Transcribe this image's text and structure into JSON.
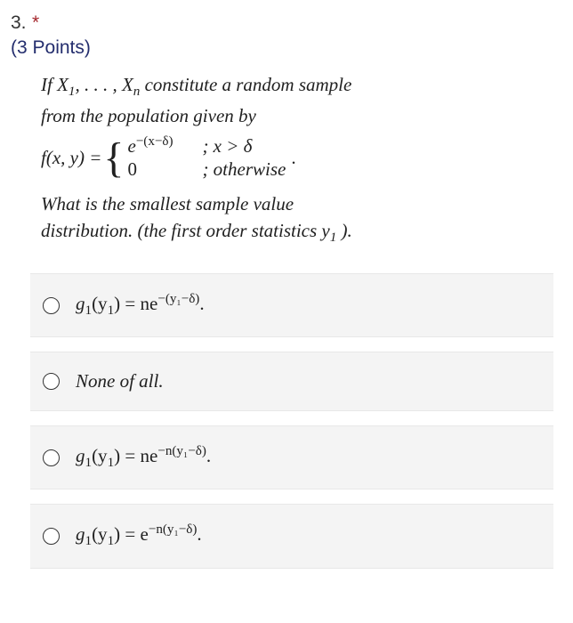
{
  "header": {
    "number": "3.",
    "required_mark": "*",
    "points": "(3 Points)"
  },
  "question": {
    "line1_a": "If X",
    "line1_b": ", . . . , X",
    "line1_c": " constitute a random sample",
    "sub1": "1",
    "subn": "n",
    "line2": "from the population given by",
    "fxy": "f(x, y) = ",
    "case1_val_a": "e",
    "case1_exp": "−(x−δ)",
    "case1_cond": "; x > δ",
    "case2_val": "0",
    "case2_cond": "; otherwise",
    "trailing_dot": ".",
    "line4": "What is the smallest sample value",
    "line5_a": "distribution.  (the first order statistics y",
    "line5_sub": "1",
    "line5_b": " )."
  },
  "options": {
    "a": {
      "pre": "g",
      "sub": "1",
      "mid": "(y",
      "sub2": "1",
      "post": ") = ne",
      "exp": "−(y₁−δ)",
      "tail": "."
    },
    "b": {
      "text": "None of all."
    },
    "c": {
      "pre": "g",
      "sub": "1",
      "mid": "(y",
      "sub2": "1",
      "post": ") = ne",
      "exp": "−n(y₁−δ)",
      "tail": "."
    },
    "d": {
      "pre": "g",
      "sub": "1",
      "mid": "(y",
      "sub2": "1",
      "post": ") = e",
      "exp": "−n(y₁−δ)",
      "tail": "."
    }
  },
  "style": {
    "background": "#ffffff",
    "option_bg": "#f4f4f4",
    "text_color": "#212121",
    "points_color": "#242e6e",
    "star_color": "#a4262c",
    "body_fontsize": 21,
    "header_fontsize": 21,
    "font_family_body": "Times New Roman",
    "font_family_ui": "Segoe UI"
  }
}
